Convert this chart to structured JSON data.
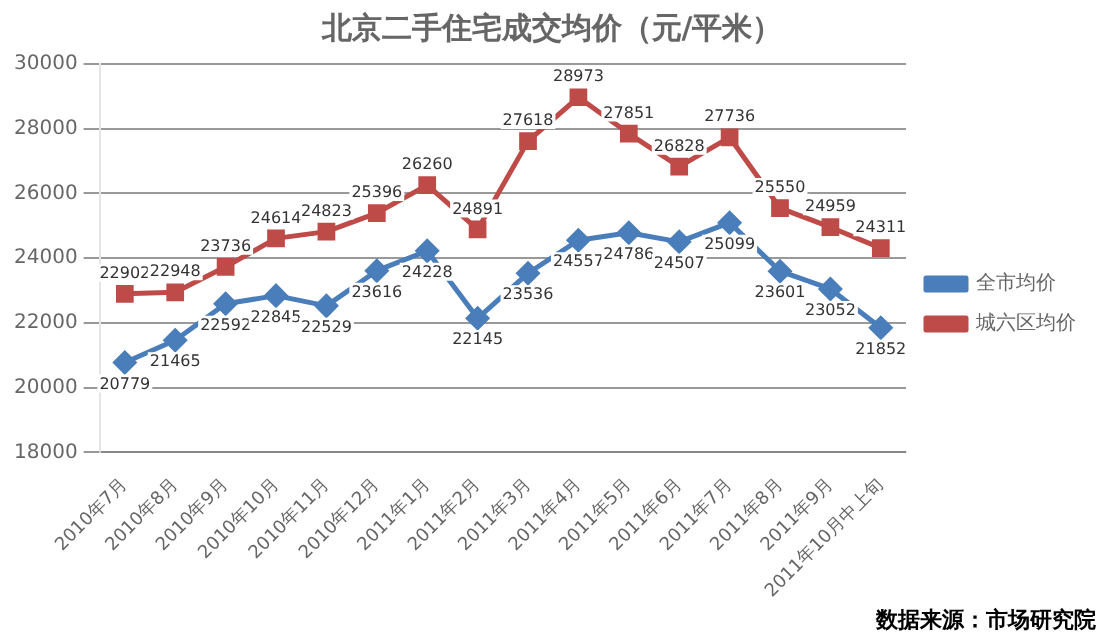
{
  "chart_data": {
    "type": "line",
    "title": "北京二手住宅成交均价（元/平米）",
    "categories": [
      "2010年7月",
      "2010年8月",
      "2010年9月",
      "2010年10月",
      "2010年11月",
      "2010年12月",
      "2011年1月",
      "2011年2月",
      "2011年3月",
      "2011年4月",
      "2011年5月",
      "2011年6月",
      "2011年7月",
      "2011年8月",
      "2011年9月",
      "2011年10月中上旬"
    ],
    "series": [
      {
        "name": "全市均价",
        "color": "#4a7ebb",
        "marker": "diamond",
        "values": [
          20779,
          21465,
          22592,
          22845,
          22529,
          23616,
          24228,
          22145,
          23536,
          24557,
          24786,
          24507,
          25099,
          23601,
          23052,
          21852
        ]
      },
      {
        "name": "城六区均价",
        "color": "#be4b48",
        "marker": "square",
        "values": [
          22902,
          22948,
          23736,
          24614,
          24823,
          25396,
          26260,
          24891,
          27618,
          28973,
          27851,
          26828,
          27736,
          25550,
          24959,
          24311
        ]
      }
    ],
    "ylim": [
      18000,
      30000
    ],
    "yticks": [
      18000,
      20000,
      22000,
      24000,
      26000,
      28000,
      30000
    ],
    "grid": "y",
    "legend": "right",
    "data_labels": true,
    "annotations": [
      "数据来源：市场研究院"
    ]
  }
}
